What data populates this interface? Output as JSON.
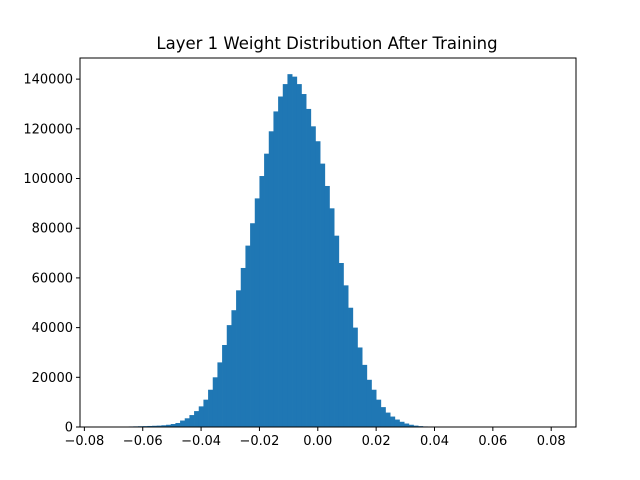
{
  "chart_data": {
    "type": "bar",
    "title": "Layer 1 Weight Distribution After Training",
    "xlabel": "",
    "ylabel": "",
    "xlim": [
      -0.0815,
      0.0885
    ],
    "ylim": [
      0,
      148500
    ],
    "xticks": [
      -0.08,
      -0.06,
      -0.04,
      -0.02,
      0.0,
      0.02,
      0.04,
      0.06,
      0.08
    ],
    "xtick_labels": [
      "−0.08",
      "−0.06",
      "−0.04",
      "−0.02",
      "0.00",
      "0.02",
      "0.04",
      "0.06",
      "0.08"
    ],
    "yticks": [
      0,
      20000,
      40000,
      60000,
      80000,
      100000,
      120000,
      140000
    ],
    "ytick_labels": [
      "0",
      "20000",
      "40000",
      "60000",
      "80000",
      "100000",
      "120000",
      "140000"
    ],
    "bin_start": -0.0776,
    "bin_width": 0.0016,
    "values": [
      50,
      60,
      70,
      80,
      100,
      120,
      150,
      180,
      220,
      260,
      310,
      360,
      420,
      490,
      560,
      700,
      900,
      1200,
      1600,
      2600,
      3500,
      4800,
      6400,
      8300,
      11000,
      15000,
      20000,
      26000,
      33000,
      41000,
      47000,
      55000,
      64000,
      73000,
      82000,
      92000,
      101000,
      110000,
      119000,
      127000,
      133000,
      138000,
      142000,
      141000,
      138000,
      134000,
      128000,
      121000,
      115000,
      106000,
      97000,
      88000,
      77000,
      66000,
      57000,
      48000,
      40000,
      32000,
      25000,
      19000,
      15000,
      11000,
      8000,
      5800,
      4200,
      3000,
      2100,
      1400,
      900,
      560,
      350,
      220,
      150,
      110,
      90,
      75,
      60,
      50,
      40,
      30,
      25,
      20,
      15,
      10,
      10,
      8,
      6,
      5,
      4,
      3,
      2,
      2,
      1,
      1,
      1,
      1,
      1,
      1,
      1,
      1,
      1,
      1,
      1,
      1,
      1,
      1
    ],
    "bar_color": "#1f77b4",
    "grid": false,
    "legend": false
  }
}
